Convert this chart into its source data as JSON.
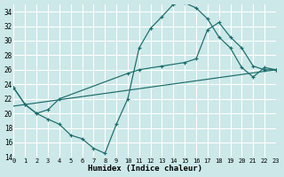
{
  "xlabel": "Humidex (Indice chaleur)",
  "xlim": [
    0,
    23
  ],
  "ylim": [
    14,
    35
  ],
  "yticks": [
    14,
    16,
    18,
    20,
    22,
    24,
    26,
    28,
    30,
    32,
    34
  ],
  "xticks": [
    0,
    1,
    2,
    3,
    4,
    5,
    6,
    7,
    8,
    9,
    10,
    11,
    12,
    13,
    14,
    15,
    16,
    17,
    18,
    19,
    20,
    21,
    22,
    23
  ],
  "bg_color": "#cce8e8",
  "grid_color": "#f0f0f0",
  "line_color": "#1a6b6b",
  "curve1_x": [
    0,
    1,
    2,
    3,
    4,
    5,
    6,
    7,
    8,
    9,
    10,
    11,
    12,
    13,
    14,
    15,
    16,
    17,
    18,
    19,
    20,
    21,
    22,
    23
  ],
  "curve1_y": [
    23.5,
    21.2,
    20.0,
    19.2,
    18.5,
    17.0,
    16.5,
    15.2,
    14.5,
    18.5,
    22.0,
    29.0,
    31.7,
    33.3,
    35.0,
    35.2,
    34.5,
    33.0,
    30.5,
    29.0,
    26.3,
    25.0,
    26.3,
    26.0
  ],
  "curve2_x": [
    0,
    1,
    2,
    3,
    4,
    10,
    11,
    13,
    15,
    16,
    17,
    18,
    19,
    20,
    21,
    22,
    23
  ],
  "curve2_y": [
    23.5,
    21.2,
    20.0,
    20.5,
    22.0,
    25.5,
    26.0,
    26.5,
    27.0,
    27.5,
    31.5,
    32.5,
    30.5,
    29.0,
    26.5,
    26.0,
    26.0
  ],
  "curve3_x": [
    0,
    23
  ],
  "curve3_y": [
    21.0,
    26.0
  ]
}
